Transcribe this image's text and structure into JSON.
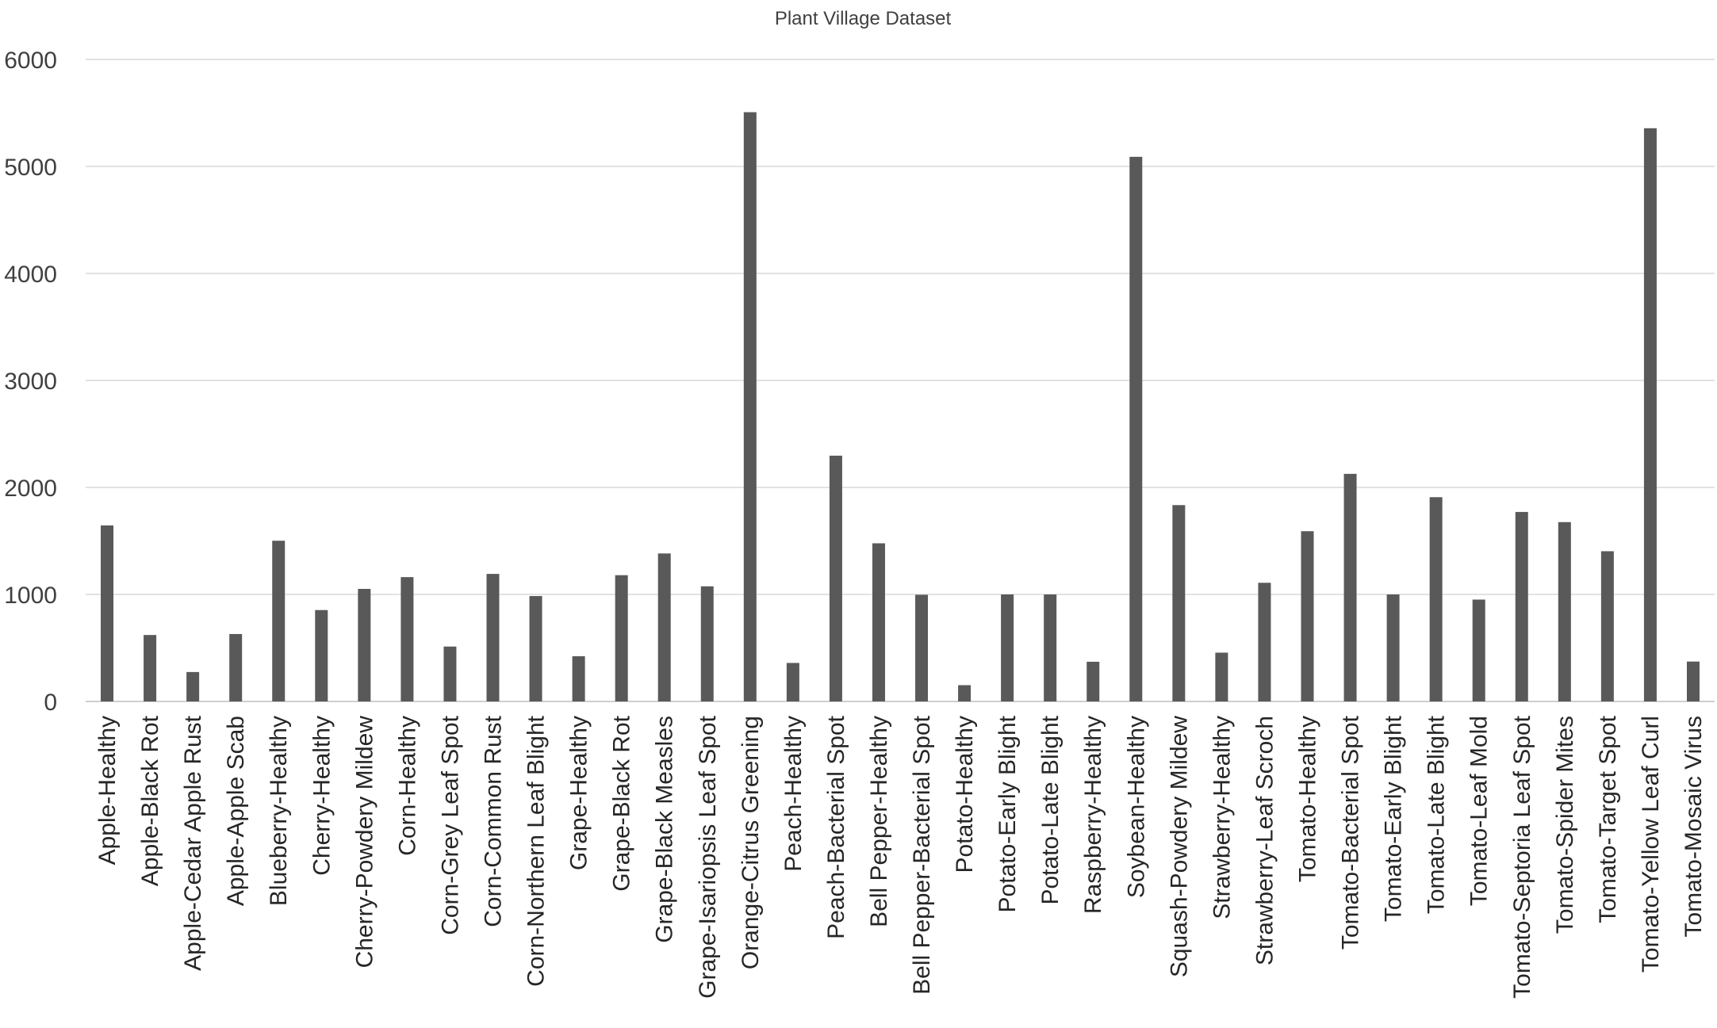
{
  "chart_data": {
    "type": "bar",
    "title": "Plant Village Dataset",
    "xlabel": "",
    "ylabel": "",
    "ylim": [
      0,
      6000
    ],
    "yticks": [
      0,
      1000,
      2000,
      3000,
      4000,
      5000,
      6000
    ],
    "grid": true,
    "legend": "none",
    "bar_color": "#595959",
    "categories": [
      "Apple-Healthy",
      "Apple-Black Rot",
      "Apple-Cedar Apple Rust",
      "Apple-Apple Scab",
      "Blueberry-Healthy",
      "Cherry-Healthy",
      "Cherry-Powdery Mildew",
      "Corn-Healthy",
      "Corn-Grey Leaf Spot",
      "Corn-Common Rust",
      "Corn-Northern Leaf Blight",
      "Grape-Healthy",
      "Grape-Black Rot",
      "Grape-Black Measles",
      "Grape-Isariopsis Leaf Spot",
      "Orange-Citrus Greening",
      "Peach-Healthy",
      "Peach-Bacterial Spot",
      "Bell Pepper-Healthy",
      "Bell Pepper-Bacterial Spot",
      "Potato-Healthy",
      "Potato-Early Blight",
      "Potato-Late Blight",
      "Raspberry-Healthy",
      "Soybean-Healthy",
      "Squash-Powdery Mildew",
      "Strawberry-Healthy",
      "Strawberry-Leaf Scroch",
      "Tomato-Healthy",
      "Tomato-Bacterial Spot",
      "Tomato-Early Blight",
      "Tomato-Late Blight",
      "Tomato-Leaf Mold",
      "Tomato-Septoria Leaf Spot",
      "Tomato-Spider Mites",
      "Tomato-Target Spot",
      "Tomato-Yellow Leaf Curl",
      "Tomato-Mosaic Virus"
    ],
    "values": [
      1645,
      621,
      275,
      630,
      1502,
      854,
      1052,
      1162,
      513,
      1192,
      985,
      423,
      1180,
      1383,
      1076,
      5507,
      360,
      2297,
      1478,
      997,
      152,
      1000,
      1000,
      371,
      5090,
      1835,
      456,
      1109,
      1591,
      2127,
      1000,
      1909,
      952,
      1771,
      1676,
      1404,
      5357,
      373
    ]
  }
}
